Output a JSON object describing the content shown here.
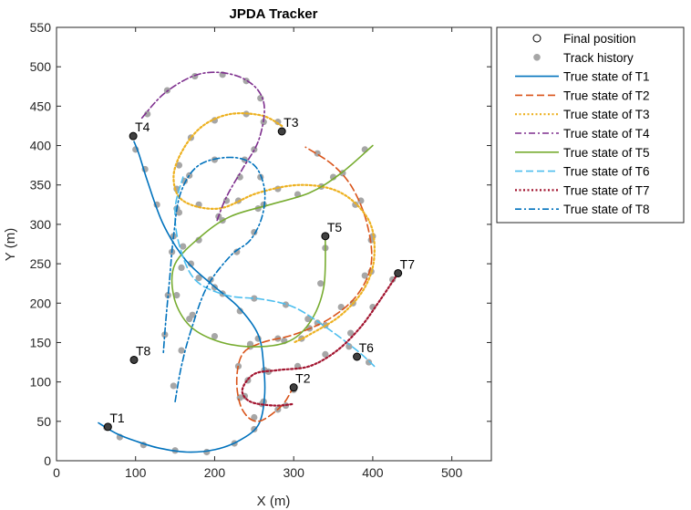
{
  "chart_data": {
    "type": "line",
    "title": "JPDA Tracker",
    "xlabel": "X (m)",
    "ylabel": "Y (m)",
    "xlim": [
      0,
      550
    ],
    "ylim": [
      0,
      550
    ],
    "xticks": [
      "0",
      "100",
      "200",
      "300",
      "400",
      "500"
    ],
    "yticks": [
      "0",
      "50",
      "100",
      "150",
      "200",
      "250",
      "300",
      "350",
      "400",
      "450",
      "500",
      "550"
    ],
    "grid": false,
    "legend_position": "outside-top-right",
    "legend": [
      {
        "label": "Final position",
        "kind": "marker-open"
      },
      {
        "label": "Track history",
        "kind": "marker-filled"
      },
      {
        "label": "True state of T1",
        "kind": "line",
        "color": "#0072BD",
        "dash": "solid"
      },
      {
        "label": "True state of T2",
        "kind": "line",
        "color": "#D95319",
        "dash": "dashed"
      },
      {
        "label": "True state of T3",
        "kind": "line",
        "color": "#EDB120",
        "dash": "dotted"
      },
      {
        "label": "True state of T4",
        "kind": "line",
        "color": "#7E2F8E",
        "dash": "dashdot"
      },
      {
        "label": "True state of T5",
        "kind": "line",
        "color": "#77AC30",
        "dash": "solid"
      },
      {
        "label": "True state of T6",
        "kind": "line",
        "color": "#4DBEEE",
        "dash": "dashed"
      },
      {
        "label": "True state of T7",
        "kind": "line",
        "color": "#A2142F",
        "dash": "dotted"
      },
      {
        "label": "True state of T8",
        "kind": "line",
        "color": "#0072BD",
        "dash": "dashdot"
      }
    ],
    "series": [
      {
        "name": "T1",
        "label": "T1",
        "color": "#0072BD",
        "dash": "solid",
        "points": [
          [
            53,
            48
          ],
          [
            75,
            35
          ],
          [
            100,
            25
          ],
          [
            130,
            16
          ],
          [
            165,
            11
          ],
          [
            200,
            14
          ],
          [
            230,
            25
          ],
          [
            255,
            45
          ],
          [
            263,
            80
          ],
          [
            262,
            120
          ],
          [
            255,
            160
          ],
          [
            230,
            195
          ],
          [
            195,
            225
          ],
          [
            163,
            255
          ],
          [
            135,
            300
          ],
          [
            115,
            355
          ],
          [
            104,
            390
          ],
          [
            98,
            405
          ]
        ],
        "history": [
          [
            63,
            42
          ],
          [
            80,
            30
          ],
          [
            110,
            20
          ],
          [
            150,
            13
          ],
          [
            190,
            11
          ],
          [
            225,
            22
          ],
          [
            250,
            40
          ],
          [
            262,
            75
          ],
          [
            263,
            115
          ],
          [
            255,
            155
          ],
          [
            232,
            190
          ],
          [
            200,
            220
          ],
          [
            170,
            250
          ],
          [
            148,
            285
          ],
          [
            127,
            325
          ],
          [
            112,
            370
          ],
          [
            100,
            395
          ]
        ],
        "final": [
          65,
          43
        ]
      },
      {
        "name": "T2",
        "label": "T2",
        "color": "#D95319",
        "dash": "dashed",
        "points": [
          [
            300,
            95
          ],
          [
            285,
            70
          ],
          [
            255,
            50
          ],
          [
            235,
            65
          ],
          [
            228,
            100
          ],
          [
            235,
            135
          ],
          [
            260,
            150
          ],
          [
            300,
            160
          ],
          [
            345,
            180
          ],
          [
            380,
            210
          ],
          [
            398,
            250
          ],
          [
            393,
            300
          ],
          [
            375,
            345
          ],
          [
            350,
            375
          ],
          [
            315,
            398
          ]
        ],
        "history": [
          [
            300,
            90
          ],
          [
            280,
            65
          ],
          [
            250,
            55
          ],
          [
            232,
            80
          ],
          [
            230,
            120
          ],
          [
            245,
            145
          ],
          [
            280,
            155
          ],
          [
            320,
            168
          ],
          [
            360,
            195
          ],
          [
            390,
            235
          ],
          [
            398,
            280
          ],
          [
            385,
            330
          ],
          [
            362,
            365
          ],
          [
            330,
            390
          ]
        ],
        "final": [
          300,
          93
        ]
      },
      {
        "name": "T3",
        "label": "T3",
        "color": "#EDB120",
        "dash": "dotted",
        "points": [
          [
            285,
            425
          ],
          [
            260,
            438
          ],
          [
            220,
            440
          ],
          [
            185,
            425
          ],
          [
            160,
            395
          ],
          [
            148,
            360
          ],
          [
            160,
            330
          ],
          [
            205,
            320
          ],
          [
            255,
            340
          ],
          [
            310,
            350
          ],
          [
            360,
            340
          ],
          [
            395,
            305
          ],
          [
            402,
            260
          ],
          [
            390,
            220
          ],
          [
            360,
            185
          ],
          [
            320,
            160
          ],
          [
            300,
            150
          ]
        ],
        "history": [
          [
            280,
            430
          ],
          [
            240,
            440
          ],
          [
            200,
            432
          ],
          [
            170,
            410
          ],
          [
            155,
            375
          ],
          [
            152,
            345
          ],
          [
            180,
            325
          ],
          [
            230,
            330
          ],
          [
            280,
            345
          ],
          [
            335,
            348
          ],
          [
            378,
            325
          ],
          [
            400,
            285
          ],
          [
            398,
            240
          ],
          [
            375,
            200
          ],
          [
            340,
            172
          ],
          [
            310,
            155
          ]
        ],
        "final": [
          285,
          418
        ]
      },
      {
        "name": "T4",
        "label": "T4",
        "color": "#7E2F8E",
        "dash": "dashdot",
        "points": [
          [
            108,
            435
          ],
          [
            135,
            465
          ],
          [
            170,
            487
          ],
          [
            200,
            493
          ],
          [
            232,
            487
          ],
          [
            255,
            470
          ],
          [
            263,
            445
          ],
          [
            255,
            405
          ],
          [
            235,
            370
          ],
          [
            215,
            335
          ],
          [
            203,
            305
          ]
        ],
        "history": [
          [
            115,
            440
          ],
          [
            140,
            470
          ],
          [
            175,
            488
          ],
          [
            210,
            490
          ],
          [
            240,
            482
          ],
          [
            258,
            460
          ],
          [
            262,
            430
          ],
          [
            250,
            395
          ],
          [
            232,
            360
          ],
          [
            215,
            330
          ],
          [
            205,
            310
          ]
        ],
        "final": [
          97,
          412
        ]
      },
      {
        "name": "T5",
        "label": "T5",
        "color": "#77AC30",
        "dash": "solid",
        "points": [
          [
            400,
            400
          ],
          [
            360,
            365
          ],
          [
            320,
            340
          ],
          [
            270,
            325
          ],
          [
            220,
            310
          ],
          [
            183,
            285
          ],
          [
            150,
            250
          ],
          [
            148,
            210
          ],
          [
            165,
            175
          ],
          [
            195,
            155
          ],
          [
            240,
            145
          ],
          [
            290,
            150
          ],
          [
            320,
            175
          ],
          [
            338,
            220
          ],
          [
            340,
            285
          ]
        ],
        "history": [
          [
            390,
            395
          ],
          [
            350,
            360
          ],
          [
            305,
            338
          ],
          [
            255,
            320
          ],
          [
            210,
            305
          ],
          [
            180,
            280
          ],
          [
            158,
            245
          ],
          [
            152,
            210
          ],
          [
            168,
            180
          ],
          [
            200,
            158
          ],
          [
            245,
            148
          ],
          [
            288,
            152
          ],
          [
            318,
            180
          ],
          [
            334,
            225
          ],
          [
            340,
            270
          ]
        ],
        "final": [
          340,
          285
        ]
      },
      {
        "name": "T6",
        "label": "T6",
        "color": "#4DBEEE",
        "dash": "dashed",
        "points": [
          [
            402,
            120
          ],
          [
            380,
            140
          ],
          [
            340,
            170
          ],
          [
            300,
            195
          ],
          [
            260,
            205
          ],
          [
            215,
            210
          ],
          [
            175,
            230
          ],
          [
            155,
            275
          ],
          [
            150,
            320
          ],
          [
            160,
            360
          ]
        ],
        "history": [
          [
            395,
            125
          ],
          [
            370,
            145
          ],
          [
            330,
            175
          ],
          [
            290,
            198
          ],
          [
            250,
            206
          ],
          [
            210,
            212
          ],
          [
            180,
            232
          ],
          [
            160,
            272
          ],
          [
            155,
            315
          ],
          [
            162,
            355
          ]
        ],
        "final": [
          380,
          132
        ]
      },
      {
        "name": "T7",
        "label": "T7",
        "color": "#A2142F",
        "dash": "dotted",
        "points": [
          [
            432,
            238
          ],
          [
            410,
            205
          ],
          [
            385,
            170
          ],
          [
            355,
            140
          ],
          [
            320,
            120
          ],
          [
            280,
            115
          ],
          [
            250,
            110
          ],
          [
            235,
            90
          ],
          [
            245,
            75
          ],
          [
            275,
            70
          ],
          [
            300,
            72
          ]
        ],
        "history": [
          [
            425,
            230
          ],
          [
            400,
            195
          ],
          [
            372,
            162
          ],
          [
            340,
            135
          ],
          [
            305,
            120
          ],
          [
            268,
            113
          ],
          [
            242,
            102
          ],
          [
            238,
            82
          ],
          [
            260,
            72
          ],
          [
            290,
            70
          ]
        ],
        "final": [
          432,
          238
        ]
      },
      {
        "name": "T8",
        "label": "T8",
        "color": "#0072BD",
        "dash": "dashdot",
        "points": [
          [
            150,
            75
          ],
          [
            158,
            120
          ],
          [
            170,
            165
          ],
          [
            190,
            220
          ],
          [
            220,
            260
          ],
          [
            245,
            280
          ],
          [
            260,
            310
          ],
          [
            263,
            345
          ],
          [
            250,
            375
          ],
          [
            220,
            385
          ],
          [
            180,
            375
          ],
          [
            157,
            340
          ],
          [
            148,
            285
          ],
          [
            143,
            230
          ],
          [
            138,
            175
          ],
          [
            135,
            135
          ]
        ],
        "history": [
          [
            148,
            95
          ],
          [
            158,
            140
          ],
          [
            172,
            185
          ],
          [
            195,
            230
          ],
          [
            228,
            265
          ],
          [
            250,
            290
          ],
          [
            262,
            325
          ],
          [
            258,
            360
          ],
          [
            238,
            382
          ],
          [
            200,
            382
          ],
          [
            168,
            362
          ],
          [
            152,
            320
          ],
          [
            146,
            265
          ],
          [
            141,
            210
          ],
          [
            137,
            160
          ]
        ],
        "final": [
          98,
          128
        ]
      }
    ],
    "track_labels": [
      {
        "text": "T1",
        "x": 65,
        "y": 43
      },
      {
        "text": "T2",
        "x": 300,
        "y": 93
      },
      {
        "text": "T3",
        "x": 285,
        "y": 418
      },
      {
        "text": "T4",
        "x": 97,
        "y": 412
      },
      {
        "text": "T5",
        "x": 340,
        "y": 285
      },
      {
        "text": "T6",
        "x": 380,
        "y": 132
      },
      {
        "text": "T7",
        "x": 432,
        "y": 238
      },
      {
        "text": "T8",
        "x": 98,
        "y": 128
      }
    ]
  }
}
